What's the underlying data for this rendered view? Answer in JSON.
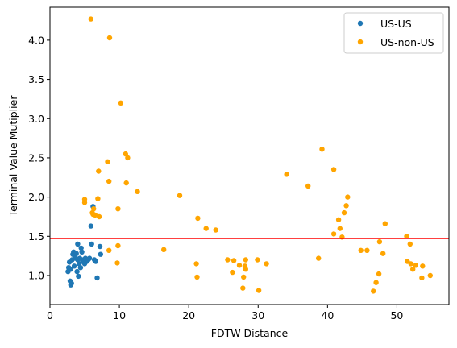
{
  "chart_data": {
    "type": "scatter",
    "xlabel": "FDTW Distance",
    "ylabel": "Terminal Value Mutiplier",
    "xlim": [
      0,
      57.5
    ],
    "ylim": [
      0.63,
      4.42
    ],
    "xticks": [
      "0",
      "10",
      "20",
      "30",
      "40",
      "50"
    ],
    "yticks": [
      "1.0",
      "1.5",
      "2.0",
      "2.5",
      "3.0",
      "3.5",
      "4.0"
    ],
    "grid": false,
    "legend_position": "top-right",
    "hline": {
      "y": 1.47,
      "color": "#ff0000"
    },
    "series": [
      {
        "name": "US-US",
        "color": "#1f77b4",
        "points": [
          [
            2.6,
            1.05
          ],
          [
            2.7,
            1.1
          ],
          [
            2.8,
            1.17
          ],
          [
            2.9,
            0.93
          ],
          [
            3.0,
            0.88
          ],
          [
            3.0,
            1.08
          ],
          [
            3.1,
            0.9
          ],
          [
            3.2,
            1.2
          ],
          [
            3.3,
            1.27
          ],
          [
            3.4,
            1.3
          ],
          [
            3.5,
            1.12
          ],
          [
            3.6,
            1.25
          ],
          [
            3.7,
            1.22
          ],
          [
            3.8,
            1.28
          ],
          [
            3.9,
            1.05
          ],
          [
            4.0,
            1.4
          ],
          [
            4.0,
            1.2
          ],
          [
            4.1,
            0.99
          ],
          [
            4.2,
            1.15
          ],
          [
            4.3,
            1.22
          ],
          [
            4.4,
            1.1
          ],
          [
            4.5,
            1.35
          ],
          [
            4.6,
            1.3
          ],
          [
            4.7,
            1.18
          ],
          [
            4.8,
            1.2
          ],
          [
            5.0,
            1.15
          ],
          [
            5.1,
            1.22
          ],
          [
            5.3,
            1.18
          ],
          [
            5.5,
            1.2
          ],
          [
            5.7,
            1.22
          ],
          [
            5.9,
            1.63
          ],
          [
            6.0,
            1.4
          ],
          [
            6.2,
            1.88
          ],
          [
            6.4,
            1.2
          ],
          [
            6.6,
            1.18
          ],
          [
            6.8,
            0.97
          ],
          [
            7.2,
            1.37
          ],
          [
            7.3,
            1.27
          ]
        ]
      },
      {
        "name": "US-non-US",
        "color": "#ffa500",
        "points": [
          [
            5.9,
            4.27
          ],
          [
            8.6,
            4.03
          ],
          [
            10.2,
            3.2
          ],
          [
            10.9,
            2.55
          ],
          [
            11.2,
            2.5
          ],
          [
            8.3,
            2.45
          ],
          [
            7.0,
            2.33
          ],
          [
            8.5,
            2.2
          ],
          [
            11.0,
            2.18
          ],
          [
            12.6,
            2.07
          ],
          [
            5.0,
            1.97
          ],
          [
            5.0,
            1.93
          ],
          [
            6.9,
            1.98
          ],
          [
            9.8,
            1.85
          ],
          [
            6.3,
            1.85
          ],
          [
            6.1,
            1.8
          ],
          [
            6.5,
            1.77
          ],
          [
            6.2,
            1.78
          ],
          [
            7.1,
            1.75
          ],
          [
            9.8,
            1.38
          ],
          [
            8.5,
            1.32
          ],
          [
            9.7,
            1.16
          ],
          [
            16.4,
            1.33
          ],
          [
            18.7,
            2.02
          ],
          [
            21.3,
            1.73
          ],
          [
            22.5,
            1.6
          ],
          [
            23.9,
            1.58
          ],
          [
            21.1,
            1.15
          ],
          [
            21.2,
            0.98
          ],
          [
            25.6,
            1.2
          ],
          [
            26.3,
            1.04
          ],
          [
            26.5,
            1.19
          ],
          [
            27.3,
            1.13
          ],
          [
            27.8,
            0.84
          ],
          [
            27.9,
            0.98
          ],
          [
            28.2,
            1.08
          ],
          [
            28.1,
            1.12
          ],
          [
            28.2,
            1.2
          ],
          [
            29.9,
            1.2
          ],
          [
            30.1,
            0.81
          ],
          [
            31.2,
            1.15
          ],
          [
            34.1,
            2.29
          ],
          [
            37.2,
            2.14
          ],
          [
            38.7,
            1.22
          ],
          [
            39.2,
            2.61
          ],
          [
            40.9,
            2.35
          ],
          [
            40.9,
            1.53
          ],
          [
            41.6,
            1.71
          ],
          [
            41.8,
            1.6
          ],
          [
            42.1,
            1.49
          ],
          [
            42.4,
            1.8
          ],
          [
            42.7,
            1.89
          ],
          [
            42.9,
            2.0
          ],
          [
            44.8,
            1.32
          ],
          [
            45.7,
            1.32
          ],
          [
            46.6,
            0.8
          ],
          [
            47.0,
            0.91
          ],
          [
            47.4,
            1.02
          ],
          [
            47.5,
            1.43
          ],
          [
            48.0,
            1.28
          ],
          [
            48.3,
            1.66
          ],
          [
            51.4,
            1.5
          ],
          [
            51.5,
            1.18
          ],
          [
            51.9,
            1.4
          ],
          [
            52.0,
            1.15
          ],
          [
            52.3,
            1.08
          ],
          [
            52.7,
            1.13
          ],
          [
            53.6,
            0.97
          ],
          [
            53.7,
            1.12
          ],
          [
            54.8,
            1.0
          ]
        ]
      }
    ]
  }
}
